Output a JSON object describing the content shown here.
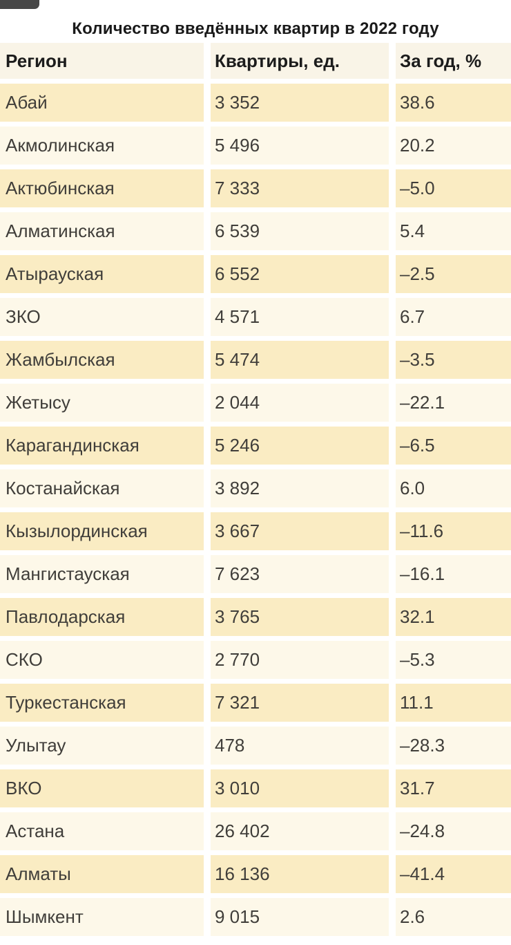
{
  "title": "Количество введённых квартир в 2022 году",
  "table": {
    "columns": [
      "Регион",
      "Квартиры, ед.",
      "За год, %"
    ],
    "rows": [
      {
        "region": "Абай",
        "apartments": "3 352",
        "yoy": "38.6"
      },
      {
        "region": "Акмолинская",
        "apartments": "5 496",
        "yoy": "20.2"
      },
      {
        "region": "Актюбинская",
        "apartments": "7 333",
        "yoy": "–5.0"
      },
      {
        "region": "Алматинская",
        "apartments": "6 539",
        "yoy": "5.4"
      },
      {
        "region": "Атырауская",
        "apartments": "6 552",
        "yoy": "–2.5"
      },
      {
        "region": "ЗКО",
        "apartments": "4 571",
        "yoy": "6.7"
      },
      {
        "region": "Жамбылская",
        "apartments": "5 474",
        "yoy": "–3.5"
      },
      {
        "region": "Жетысу",
        "apartments": "2 044",
        "yoy": "–22.1"
      },
      {
        "region": "Карагандинская",
        "apartments": "5 246",
        "yoy": "–6.5"
      },
      {
        "region": "Костанайская",
        "apartments": "3 892",
        "yoy": "6.0"
      },
      {
        "region": "Кызылординская",
        "apartments": "3 667",
        "yoy": "–11.6"
      },
      {
        "region": "Мангистауская",
        "apartments": "7 623",
        "yoy": "–16.1"
      },
      {
        "region": "Павлодарская",
        "apartments": "3 765",
        "yoy": "32.1"
      },
      {
        "region": "СКО",
        "apartments": "2 770",
        "yoy": "–5.3"
      },
      {
        "region": "Туркестанская",
        "apartments": "7 321",
        "yoy": "11.1"
      },
      {
        "region": "Улытау",
        "apartments": "478",
        "yoy": "–28.3"
      },
      {
        "region": "ВКО",
        "apartments": "3 010",
        "yoy": "31.7"
      },
      {
        "region": "Астана",
        "apartments": "26 402",
        "yoy": "–24.8"
      },
      {
        "region": "Алматы",
        "apartments": "16 136",
        "yoy": "–41.4"
      },
      {
        "region": "Шымкент",
        "apartments": "9 015",
        "yoy": "2.6"
      }
    ]
  },
  "chart_data": {
    "type": "table",
    "title": "Количество введённых квартир в 2022 году",
    "columns": [
      "Регион",
      "Квартиры, ед.",
      "За год, %"
    ],
    "rows": [
      [
        "Абай",
        3352,
        38.6
      ],
      [
        "Акмолинская",
        5496,
        20.2
      ],
      [
        "Актюбинская",
        7333,
        -5.0
      ],
      [
        "Алматинская",
        6539,
        5.4
      ],
      [
        "Атырауская",
        6552,
        -2.5
      ],
      [
        "ЗКО",
        4571,
        6.7
      ],
      [
        "Жамбылская",
        5474,
        -3.5
      ],
      [
        "Жетысу",
        2044,
        -22.1
      ],
      [
        "Карагандинская",
        5246,
        -6.5
      ],
      [
        "Костанайская",
        3892,
        6.0
      ],
      [
        "Кызылординская",
        3667,
        -11.6
      ],
      [
        "Мангистауская",
        7623,
        -16.1
      ],
      [
        "Павлодарская",
        3765,
        32.1
      ],
      [
        "СКО",
        2770,
        -5.3
      ],
      [
        "Туркестанская",
        7321,
        11.1
      ],
      [
        "Улытау",
        478,
        -28.3
      ],
      [
        "ВКО",
        3010,
        31.7
      ],
      [
        "Астана",
        26402,
        -24.8
      ],
      [
        "Алматы",
        16136,
        -41.4
      ],
      [
        "Шымкент",
        9015,
        2.6
      ]
    ]
  },
  "colors": {
    "row_yellow": "#faecc3",
    "row_cream": "#fdf8e9",
    "header_bg": "#f9f4e7",
    "data_text": "#403e3a",
    "header_text": "#1c1c1c",
    "fragment_dark": "#474747"
  }
}
